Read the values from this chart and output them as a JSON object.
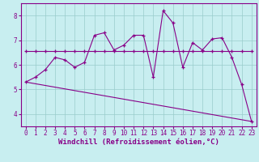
{
  "xlabel": "Windchill (Refroidissement éolien,°C)",
  "bg_color": "#c8eef0",
  "line_color": "#880088",
  "grid_color": "#99cccc",
  "xlim": [
    -0.5,
    23.5
  ],
  "ylim": [
    3.5,
    8.5
  ],
  "xticks": [
    0,
    1,
    2,
    3,
    4,
    5,
    6,
    7,
    8,
    9,
    10,
    11,
    12,
    13,
    14,
    15,
    16,
    17,
    18,
    19,
    20,
    21,
    22,
    23
  ],
  "yticks": [
    4,
    5,
    6,
    7,
    8
  ],
  "series1_x": [
    0,
    1,
    2,
    3,
    4,
    5,
    6,
    7,
    8,
    9,
    10,
    11,
    12,
    13,
    14,
    15,
    16,
    17,
    18,
    19,
    20,
    21,
    22,
    23
  ],
  "series1_y": [
    5.3,
    5.5,
    5.8,
    6.3,
    6.2,
    5.9,
    6.1,
    7.2,
    7.3,
    6.6,
    6.8,
    7.2,
    7.2,
    5.5,
    8.2,
    7.7,
    5.9,
    6.9,
    6.6,
    7.05,
    7.1,
    6.3,
    5.2,
    3.7
  ],
  "series2_x": [
    0,
    1,
    2,
    3,
    4,
    5,
    6,
    7,
    8,
    9,
    10,
    11,
    12,
    13,
    14,
    15,
    16,
    17,
    18,
    19,
    20,
    21,
    22,
    23
  ],
  "series2_y": [
    6.55,
    6.55,
    6.55,
    6.55,
    6.55,
    6.55,
    6.55,
    6.55,
    6.55,
    6.55,
    6.55,
    6.55,
    6.55,
    6.55,
    6.55,
    6.55,
    6.55,
    6.55,
    6.55,
    6.55,
    6.55,
    6.55,
    6.55,
    6.55
  ],
  "series3_x": [
    0,
    23
  ],
  "series3_y": [
    5.3,
    3.7
  ],
  "tick_fontsize": 5.5,
  "xlabel_fontsize": 6.5
}
